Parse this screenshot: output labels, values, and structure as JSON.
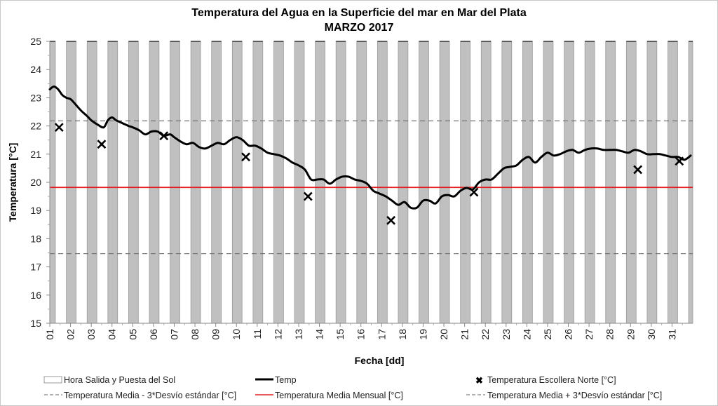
{
  "chart_data": {
    "type": "line",
    "title": "Temperatura del Agua en la Superficie del mar en Mar del Plata",
    "subtitle": "MARZO 2017",
    "xlabel": "Fecha [dd]",
    "ylabel": "Temperatura [°C]",
    "ylim": [
      15,
      25
    ],
    "xlim": [
      1,
      32
    ],
    "yticks": [
      15,
      16,
      17,
      18,
      19,
      20,
      21,
      22,
      23,
      24,
      25
    ],
    "xtick_labels": [
      "01",
      "02",
      "03",
      "04",
      "05",
      "06",
      "07",
      "08",
      "09",
      "10",
      "11",
      "12",
      "13",
      "14",
      "15",
      "16",
      "17",
      "18",
      "19",
      "20",
      "21",
      "22",
      "23",
      "24",
      "25",
      "26",
      "27",
      "28",
      "29",
      "30",
      "31"
    ],
    "grid": false,
    "legend_position": "bottom",
    "daylight_bars": {
      "name": "Hora Salida y Puesta del Sol",
      "color": "#c0c0c0",
      "sunrise_fraction": 0.8,
      "sunset_fraction": 1.27
    },
    "series": [
      {
        "name": "Temp",
        "color": "#000000",
        "x": [
          1.0,
          1.2,
          1.4,
          1.6,
          1.8,
          2.0,
          2.2,
          2.5,
          2.8,
          3.0,
          3.3,
          3.6,
          3.8,
          4.0,
          4.2,
          4.5,
          4.8,
          5.0,
          5.3,
          5.6,
          5.9,
          6.2,
          6.5,
          6.8,
          7.0,
          7.3,
          7.6,
          7.9,
          8.2,
          8.5,
          8.8,
          9.1,
          9.4,
          9.7,
          10.0,
          10.3,
          10.6,
          10.9,
          11.2,
          11.5,
          11.8,
          12.1,
          12.4,
          12.7,
          13.0,
          13.3,
          13.6,
          13.9,
          14.2,
          14.5,
          14.8,
          15.1,
          15.4,
          15.7,
          16.0,
          16.3,
          16.6,
          16.9,
          17.2,
          17.5,
          17.8,
          18.1,
          18.4,
          18.7,
          19.0,
          19.3,
          19.6,
          19.9,
          20.2,
          20.5,
          20.8,
          21.1,
          21.4,
          21.7,
          22.0,
          22.3,
          22.6,
          22.9,
          23.2,
          23.5,
          23.8,
          24.1,
          24.4,
          24.7,
          25.0,
          25.3,
          25.6,
          25.9,
          26.2,
          26.5,
          26.8,
          27.1,
          27.4,
          27.7,
          28.0,
          28.3,
          28.6,
          28.9,
          29.2,
          29.5,
          29.8,
          30.1,
          30.4,
          30.7,
          31.0,
          31.3,
          31.6,
          31.9
        ],
        "values": [
          23.3,
          23.4,
          23.3,
          23.1,
          23.0,
          22.95,
          22.8,
          22.55,
          22.35,
          22.2,
          22.05,
          21.95,
          22.2,
          22.3,
          22.2,
          22.1,
          22.0,
          21.95,
          21.85,
          21.7,
          21.8,
          21.8,
          21.65,
          21.7,
          21.6,
          21.45,
          21.35,
          21.4,
          21.25,
          21.2,
          21.3,
          21.4,
          21.35,
          21.5,
          21.6,
          21.5,
          21.3,
          21.3,
          21.2,
          21.05,
          21.0,
          20.95,
          20.85,
          20.7,
          20.6,
          20.45,
          20.1,
          20.1,
          20.1,
          19.95,
          20.1,
          20.2,
          20.2,
          20.1,
          20.05,
          19.95,
          19.7,
          19.6,
          19.5,
          19.35,
          19.2,
          19.3,
          19.1,
          19.1,
          19.35,
          19.35,
          19.25,
          19.5,
          19.55,
          19.5,
          19.7,
          19.8,
          19.75,
          20.0,
          20.1,
          20.1,
          20.3,
          20.5,
          20.55,
          20.6,
          20.8,
          20.9,
          20.7,
          20.9,
          21.05,
          20.95,
          21.0,
          21.1,
          21.15,
          21.05,
          21.15,
          21.2,
          21.2,
          21.15,
          21.15,
          21.15,
          21.1,
          21.05,
          21.15,
          21.1,
          21.0,
          21.0,
          21.0,
          20.95,
          20.9,
          20.9,
          20.8,
          20.95
        ]
      },
      {
        "name": "Temperatura Escollera Norte [°C]",
        "type": "scatter",
        "marker": "x",
        "color": "#000000",
        "x": [
          1.45,
          3.5,
          6.5,
          10.45,
          13.45,
          17.45,
          21.45,
          29.35,
          31.35
        ],
        "values": [
          21.95,
          21.35,
          21.65,
          20.9,
          19.5,
          18.65,
          19.65,
          20.45,
          20.75
        ]
      },
      {
        "name": "Temperatura Media Mensual [°C]",
        "type": "hline",
        "color": "#e0201e",
        "value": 19.82
      },
      {
        "name": "Temperatura Media - 3*Desvío estándar [°C]",
        "type": "hline",
        "dash": true,
        "color": "#707070",
        "value": 17.47
      },
      {
        "name": "Temperatura Media + 3*Desvío estándar [°C]",
        "type": "hline",
        "dash": true,
        "color": "#707070",
        "value": 22.18
      }
    ]
  },
  "legend": {
    "daylight": "Hora Salida y Puesta del Sol",
    "temp": "Temp",
    "escollera": "Temperatura Escollera Norte [°C]",
    "lower": "Temperatura Media - 3*Desvío estándar [°C]",
    "mean": "Temperatura Media Mensual [°C]",
    "upper": "Temperatura Media + 3*Desvío estándar [°C]"
  }
}
